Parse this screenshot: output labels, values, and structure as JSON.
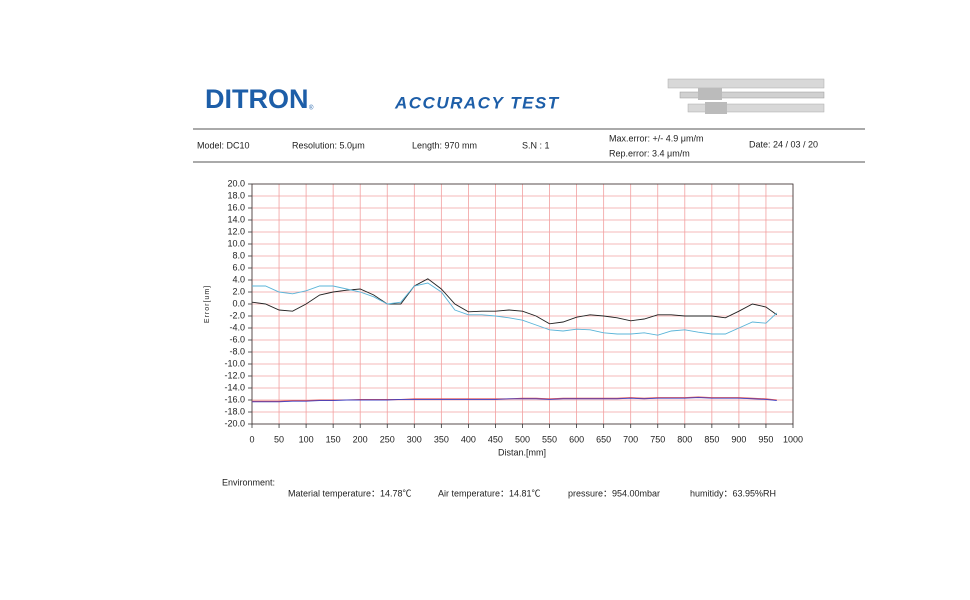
{
  "header": {
    "logo": "DITRON",
    "logo_mark": "®",
    "title": "ACCURACY TEST"
  },
  "info": {
    "model": "Model: DC10",
    "resolution": "Resolution: 5.0μm",
    "length": "Length:  970   mm",
    "sn": "S.N :  1",
    "max_error": "Max.error:  +/- 4.9 μm/m",
    "rep_error": "Rep.error:      3.4 μm/m",
    "date": "Date:  24 / 03 / 20"
  },
  "chart_data": {
    "type": "line",
    "y_label": "Error[um]",
    "x_label": "Distan.[mm]",
    "x": [
      0,
      25,
      50,
      75,
      100,
      125,
      150,
      175,
      200,
      225,
      250,
      275,
      300,
      325,
      350,
      375,
      400,
      425,
      450,
      475,
      500,
      525,
      550,
      575,
      600,
      625,
      650,
      675,
      700,
      725,
      750,
      775,
      800,
      825,
      850,
      875,
      900,
      925,
      950,
      970
    ],
    "series": [
      {
        "color": "#222222",
        "values": [
          0.3,
          0,
          -1,
          -1.2,
          0,
          1.5,
          2,
          2.3,
          2.5,
          1.5,
          0,
          0,
          3,
          4.2,
          2.5,
          0,
          -1.3,
          -1.2,
          -1.2,
          -1,
          -1.2,
          -2,
          -3.3,
          -3,
          -2.2,
          -1.8,
          -2,
          -2.3,
          -2.8,
          -2.5,
          -1.8,
          -1.8,
          -2,
          -2,
          -2,
          -2.3,
          -1.2,
          0,
          -0.5,
          -1.8
        ]
      },
      {
        "color": "#5ab4d8",
        "values": [
          3,
          3,
          2,
          1.7,
          2.2,
          3,
          3,
          2.5,
          2,
          1.2,
          0,
          0.3,
          3,
          3.5,
          2,
          -1,
          -1.8,
          -1.8,
          -2,
          -2.3,
          -2.7,
          -3.5,
          -4.3,
          -4.5,
          -4.2,
          -4.3,
          -4.8,
          -5,
          -5,
          -4.8,
          -5.2,
          -4.5,
          -4.3,
          -4.7,
          -5,
          -5,
          -4,
          -3,
          -3.2,
          -1.5
        ]
      },
      {
        "color": "#e05050",
        "values": [
          -16.2,
          -16.2,
          -16.2,
          -16.1,
          -16.1,
          -16,
          -16,
          -16,
          -15.9,
          -15.9,
          -15.9,
          -15.9,
          -15.8,
          -15.8,
          -15.8,
          -15.8,
          -15.8,
          -15.8,
          -15.8,
          -15.8,
          -15.7,
          -15.7,
          -15.8,
          -15.7,
          -15.7,
          -15.7,
          -15.7,
          -15.7,
          -15.6,
          -15.7,
          -15.6,
          -15.6,
          -15.6,
          -15.5,
          -15.6,
          -15.6,
          -15.6,
          -15.7,
          -15.8,
          -16
        ]
      },
      {
        "color": "#4040c0",
        "values": [
          -16.3,
          -16.3,
          -16.3,
          -16.2,
          -16.2,
          -16.1,
          -16.1,
          -16,
          -16,
          -16,
          -16,
          -15.9,
          -15.9,
          -15.9,
          -15.9,
          -15.9,
          -15.9,
          -15.9,
          -15.9,
          -15.8,
          -15.8,
          -15.8,
          -15.9,
          -15.8,
          -15.8,
          -15.8,
          -15.8,
          -15.8,
          -15.7,
          -15.8,
          -15.7,
          -15.7,
          -15.7,
          -15.6,
          -15.7,
          -15.7,
          -15.7,
          -15.8,
          -15.9,
          -16.1
        ]
      }
    ],
    "xlim": [
      0,
      1000
    ],
    "xticks": [
      0,
      50,
      100,
      150,
      200,
      250,
      300,
      350,
      400,
      450,
      500,
      550,
      600,
      650,
      700,
      750,
      800,
      850,
      900,
      950,
      1000
    ],
    "ylim": [
      -20,
      20
    ],
    "yticks": [
      {
        "value": 20,
        "label": "20.0"
      },
      {
        "value": 18,
        "label": "18.0"
      },
      {
        "value": 16,
        "label": "16.0"
      },
      {
        "value": 14,
        "label": "14.0"
      },
      {
        "value": 12,
        "label": "12.0"
      },
      {
        "value": 10,
        "label": "10.0"
      },
      {
        "value": 8,
        "label": "8.0"
      },
      {
        "value": 6,
        "label": "6.0"
      },
      {
        "value": 4,
        "label": "4.0"
      },
      {
        "value": 2,
        "label": "2.0"
      },
      {
        "value": 0,
        "label": "0.0"
      },
      {
        "value": -2,
        "label": "-2.0"
      },
      {
        "value": -4,
        "label": "-4.0"
      },
      {
        "value": -6,
        "label": "-6.0"
      },
      {
        "value": -8,
        "label": "-8.0"
      },
      {
        "value": -10,
        "label": "-10.0"
      },
      {
        "value": -12,
        "label": "-12.0"
      },
      {
        "value": -14,
        "label": "-14.0"
      },
      {
        "value": -16,
        "label": "-16.0"
      },
      {
        "value": -18,
        "label": "-18.0"
      },
      {
        "value": -20,
        "label": "-20.0"
      }
    ],
    "grid": true,
    "grid_color": "#f2a0a0"
  },
  "environment": {
    "title": "Environment:",
    "material": "Material temperature：14.78℃",
    "air": "Air temperature：14.81℃",
    "pressure": "pressure：954.00mbar",
    "humidity": "humitidy：63.95%RH"
  }
}
